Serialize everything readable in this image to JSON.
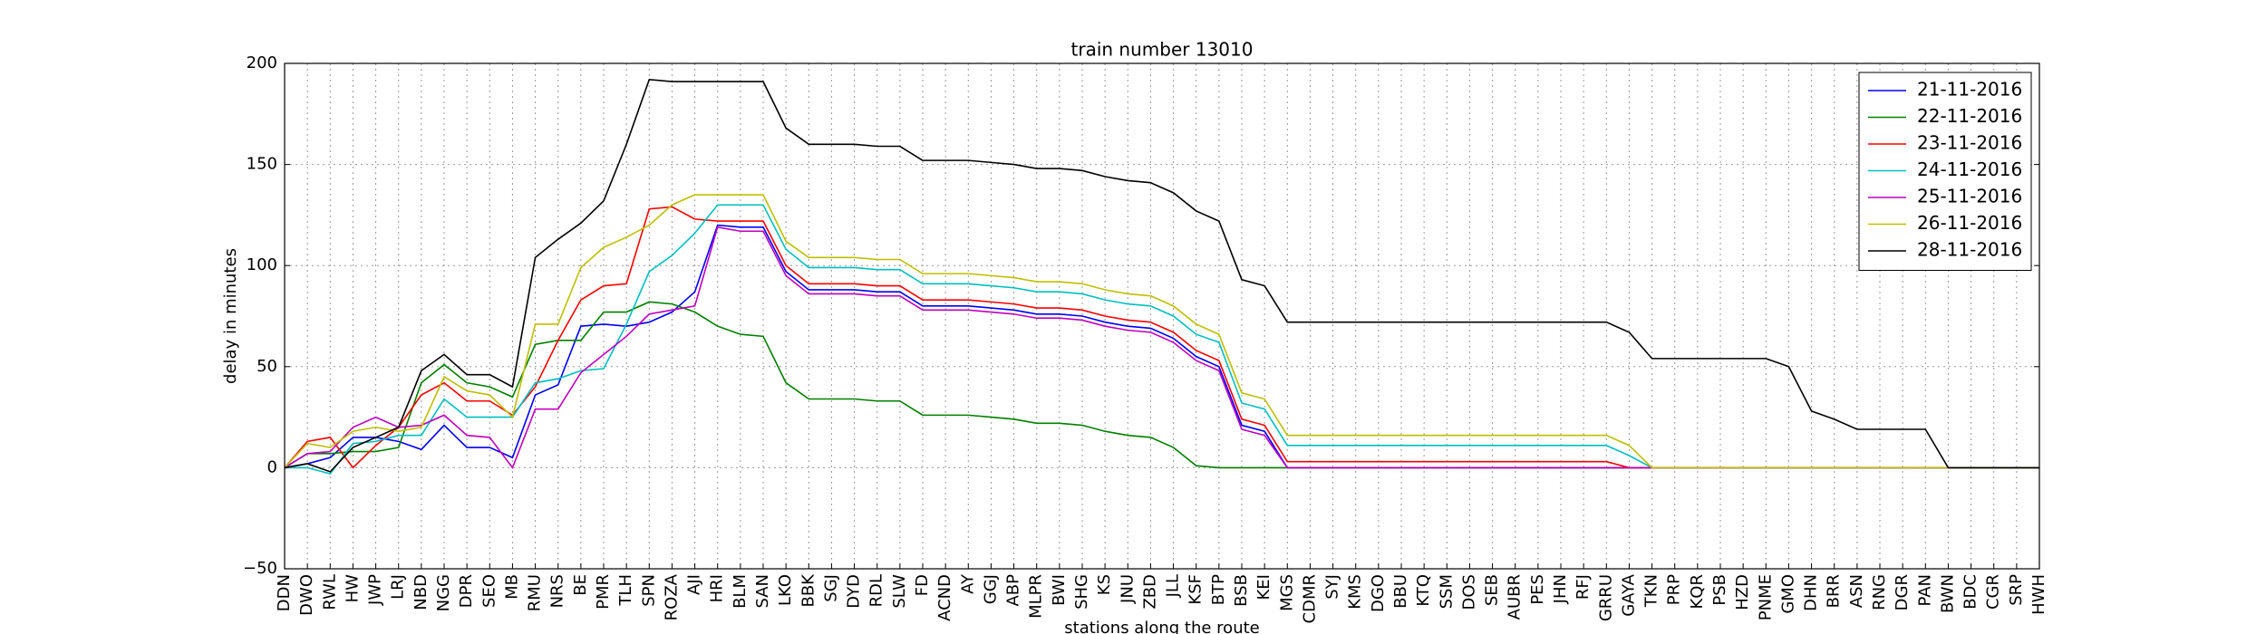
{
  "chart_data": {
    "type": "line",
    "title": "train number 13010",
    "xlabel": "stations along the route",
    "ylabel": "delay in minutes",
    "categories": [
      "DDN",
      "DWO",
      "RWL",
      "HW",
      "JWP",
      "LRJ",
      "NBD",
      "NGG",
      "DPR",
      "SEO",
      "MB",
      "RMU",
      "NRS",
      "BE",
      "PMR",
      "TLH",
      "SPN",
      "ROZA",
      "AJI",
      "HRI",
      "BLM",
      "SAN",
      "LKO",
      "BBK",
      "SGJ",
      "DYD",
      "RDL",
      "SLW",
      "FD",
      "ACND",
      "AY",
      "GGJ",
      "ABP",
      "MLPR",
      "BWI",
      "SHG",
      "KS",
      "JNU",
      "ZBD",
      "JLL",
      "KSF",
      "BTP",
      "BSB",
      "KEI",
      "MGS",
      "CDMR",
      "SYJ",
      "KMS",
      "DGO",
      "BBU",
      "KTQ",
      "SSM",
      "DOS",
      "SEB",
      "AUBR",
      "PES",
      "JHN",
      "RFJ",
      "GRRU",
      "GAYA",
      "TKN",
      "PRP",
      "KQR",
      "PSB",
      "HZD",
      "PNME",
      "GMO",
      "DHN",
      "BRR",
      "ASN",
      "RNG",
      "DGR",
      "PAN",
      "BWN",
      "BDC",
      "CGR",
      "SRP",
      "HWH"
    ],
    "series": [
      {
        "name": "21-11-2016",
        "color": "#0000ff",
        "values": [
          0,
          2,
          5,
          15,
          15,
          13,
          9,
          21,
          10,
          10,
          5,
          36,
          41,
          70,
          71,
          70,
          72,
          77,
          87,
          120,
          119,
          119,
          97,
          88,
          88,
          88,
          87,
          87,
          80,
          80,
          80,
          79,
          78,
          76,
          76,
          75,
          72,
          70,
          69,
          64,
          55,
          50,
          21,
          18,
          0,
          0,
          0,
          0,
          0,
          0,
          0,
          0,
          0,
          0,
          0,
          0,
          0,
          0,
          0,
          0,
          0,
          0,
          0,
          0,
          0,
          0,
          0,
          0,
          0,
          0,
          0,
          0,
          0,
          0,
          0,
          0,
          0,
          0
        ]
      },
      {
        "name": "22-11-2016",
        "color": "#008000",
        "values": [
          0,
          7,
          7,
          8,
          8,
          10,
          42,
          51,
          42,
          40,
          35,
          61,
          63,
          63,
          77,
          77,
          82,
          81,
          77,
          70,
          66,
          65,
          42,
          34,
          34,
          34,
          33,
          33,
          26,
          26,
          26,
          25,
          24,
          22,
          22,
          21,
          18,
          16,
          15,
          10,
          1,
          0,
          0,
          0,
          0,
          0,
          0,
          0,
          0,
          0,
          0,
          0,
          0,
          0,
          0,
          0,
          0,
          0,
          0,
          0,
          0,
          0,
          0,
          0,
          0,
          0,
          0,
          0,
          0,
          0,
          0,
          0,
          0,
          0,
          0,
          0,
          0,
          0
        ]
      },
      {
        "name": "23-11-2016",
        "color": "#ff0000",
        "values": [
          0,
          13,
          15,
          0,
          11,
          20,
          36,
          42,
          33,
          33,
          26,
          40,
          63,
          83,
          90,
          91,
          128,
          129,
          123,
          122,
          122,
          122,
          100,
          91,
          91,
          91,
          90,
          90,
          83,
          83,
          83,
          82,
          81,
          79,
          79,
          78,
          75,
          73,
          72,
          67,
          58,
          53,
          24,
          21,
          3,
          3,
          3,
          3,
          3,
          3,
          3,
          3,
          3,
          3,
          3,
          3,
          3,
          3,
          3,
          0,
          0,
          0,
          0,
          0,
          0,
          0,
          0,
          0,
          0,
          0,
          0,
          0,
          0,
          0,
          0,
          0,
          0,
          0
        ]
      },
      {
        "name": "24-11-2016",
        "color": "#00bfbf",
        "values": [
          0,
          0,
          -3,
          12,
          13,
          16,
          16,
          34,
          25,
          25,
          25,
          42,
          44,
          48,
          49,
          71,
          97,
          105,
          116,
          130,
          130,
          130,
          108,
          99,
          99,
          99,
          98,
          98,
          91,
          91,
          91,
          90,
          89,
          87,
          87,
          86,
          83,
          81,
          80,
          75,
          66,
          62,
          32,
          29,
          11,
          11,
          11,
          11,
          11,
          11,
          11,
          11,
          11,
          11,
          11,
          11,
          11,
          11,
          11,
          6,
          0,
          0,
          0,
          0,
          0,
          0,
          0,
          0,
          0,
          0,
          0,
          0,
          0,
          0,
          0,
          0,
          0,
          0
        ]
      },
      {
        "name": "25-11-2016",
        "color": "#bf00bf",
        "values": [
          0,
          7,
          8,
          20,
          25,
          20,
          21,
          26,
          16,
          15,
          0,
          29,
          29,
          47,
          56,
          65,
          76,
          78,
          80,
          119,
          117,
          117,
          95,
          86,
          86,
          86,
          85,
          85,
          78,
          78,
          78,
          77,
          76,
          74,
          74,
          73,
          70,
          68,
          67,
          62,
          53,
          48,
          19,
          16,
          0,
          0,
          0,
          0,
          0,
          0,
          0,
          0,
          0,
          0,
          0,
          0,
          0,
          0,
          0,
          0,
          0,
          0,
          0,
          0,
          0,
          0,
          0,
          0,
          0,
          0,
          0,
          0,
          0,
          0,
          0,
          0,
          0,
          0
        ]
      },
      {
        "name": "26-11-2016",
        "color": "#bfbf00",
        "values": [
          0,
          12,
          10,
          18,
          20,
          18,
          20,
          45,
          38,
          36,
          25,
          71,
          71,
          99,
          109,
          114,
          120,
          130,
          135,
          135,
          135,
          135,
          112,
          104,
          104,
          104,
          103,
          103,
          96,
          96,
          96,
          95,
          94,
          92,
          92,
          91,
          88,
          86,
          85,
          80,
          71,
          66,
          37,
          34,
          16,
          16,
          16,
          16,
          16,
          16,
          16,
          16,
          16,
          16,
          16,
          16,
          16,
          16,
          16,
          11,
          0,
          0,
          0,
          0,
          0,
          0,
          0,
          0,
          0,
          0,
          0,
          0,
          0,
          0,
          0,
          0,
          0,
          0
        ]
      },
      {
        "name": "28-11-2016",
        "color": "#000000",
        "values": [
          0,
          2,
          -2,
          10,
          15,
          20,
          48,
          56,
          46,
          46,
          40,
          104,
          113,
          121,
          132,
          160,
          192,
          191,
          191,
          191,
          191,
          191,
          168,
          160,
          160,
          160,
          159,
          159,
          152,
          152,
          152,
          151,
          150,
          148,
          148,
          147,
          144,
          142,
          141,
          136,
          127,
          122,
          93,
          90,
          72,
          72,
          72,
          72,
          72,
          72,
          72,
          72,
          72,
          72,
          72,
          72,
          72,
          72,
          72,
          67,
          54,
          54,
          54,
          54,
          54,
          54,
          50,
          28,
          24,
          19,
          19,
          19,
          19,
          0,
          0,
          0,
          0,
          0
        ]
      }
    ],
    "ylim": [
      -50,
      200
    ],
    "yticks": [
      {
        "value": -50,
        "label": "−50"
      },
      0,
      50,
      100,
      150,
      200
    ],
    "grid": true,
    "legend": "upper right"
  }
}
